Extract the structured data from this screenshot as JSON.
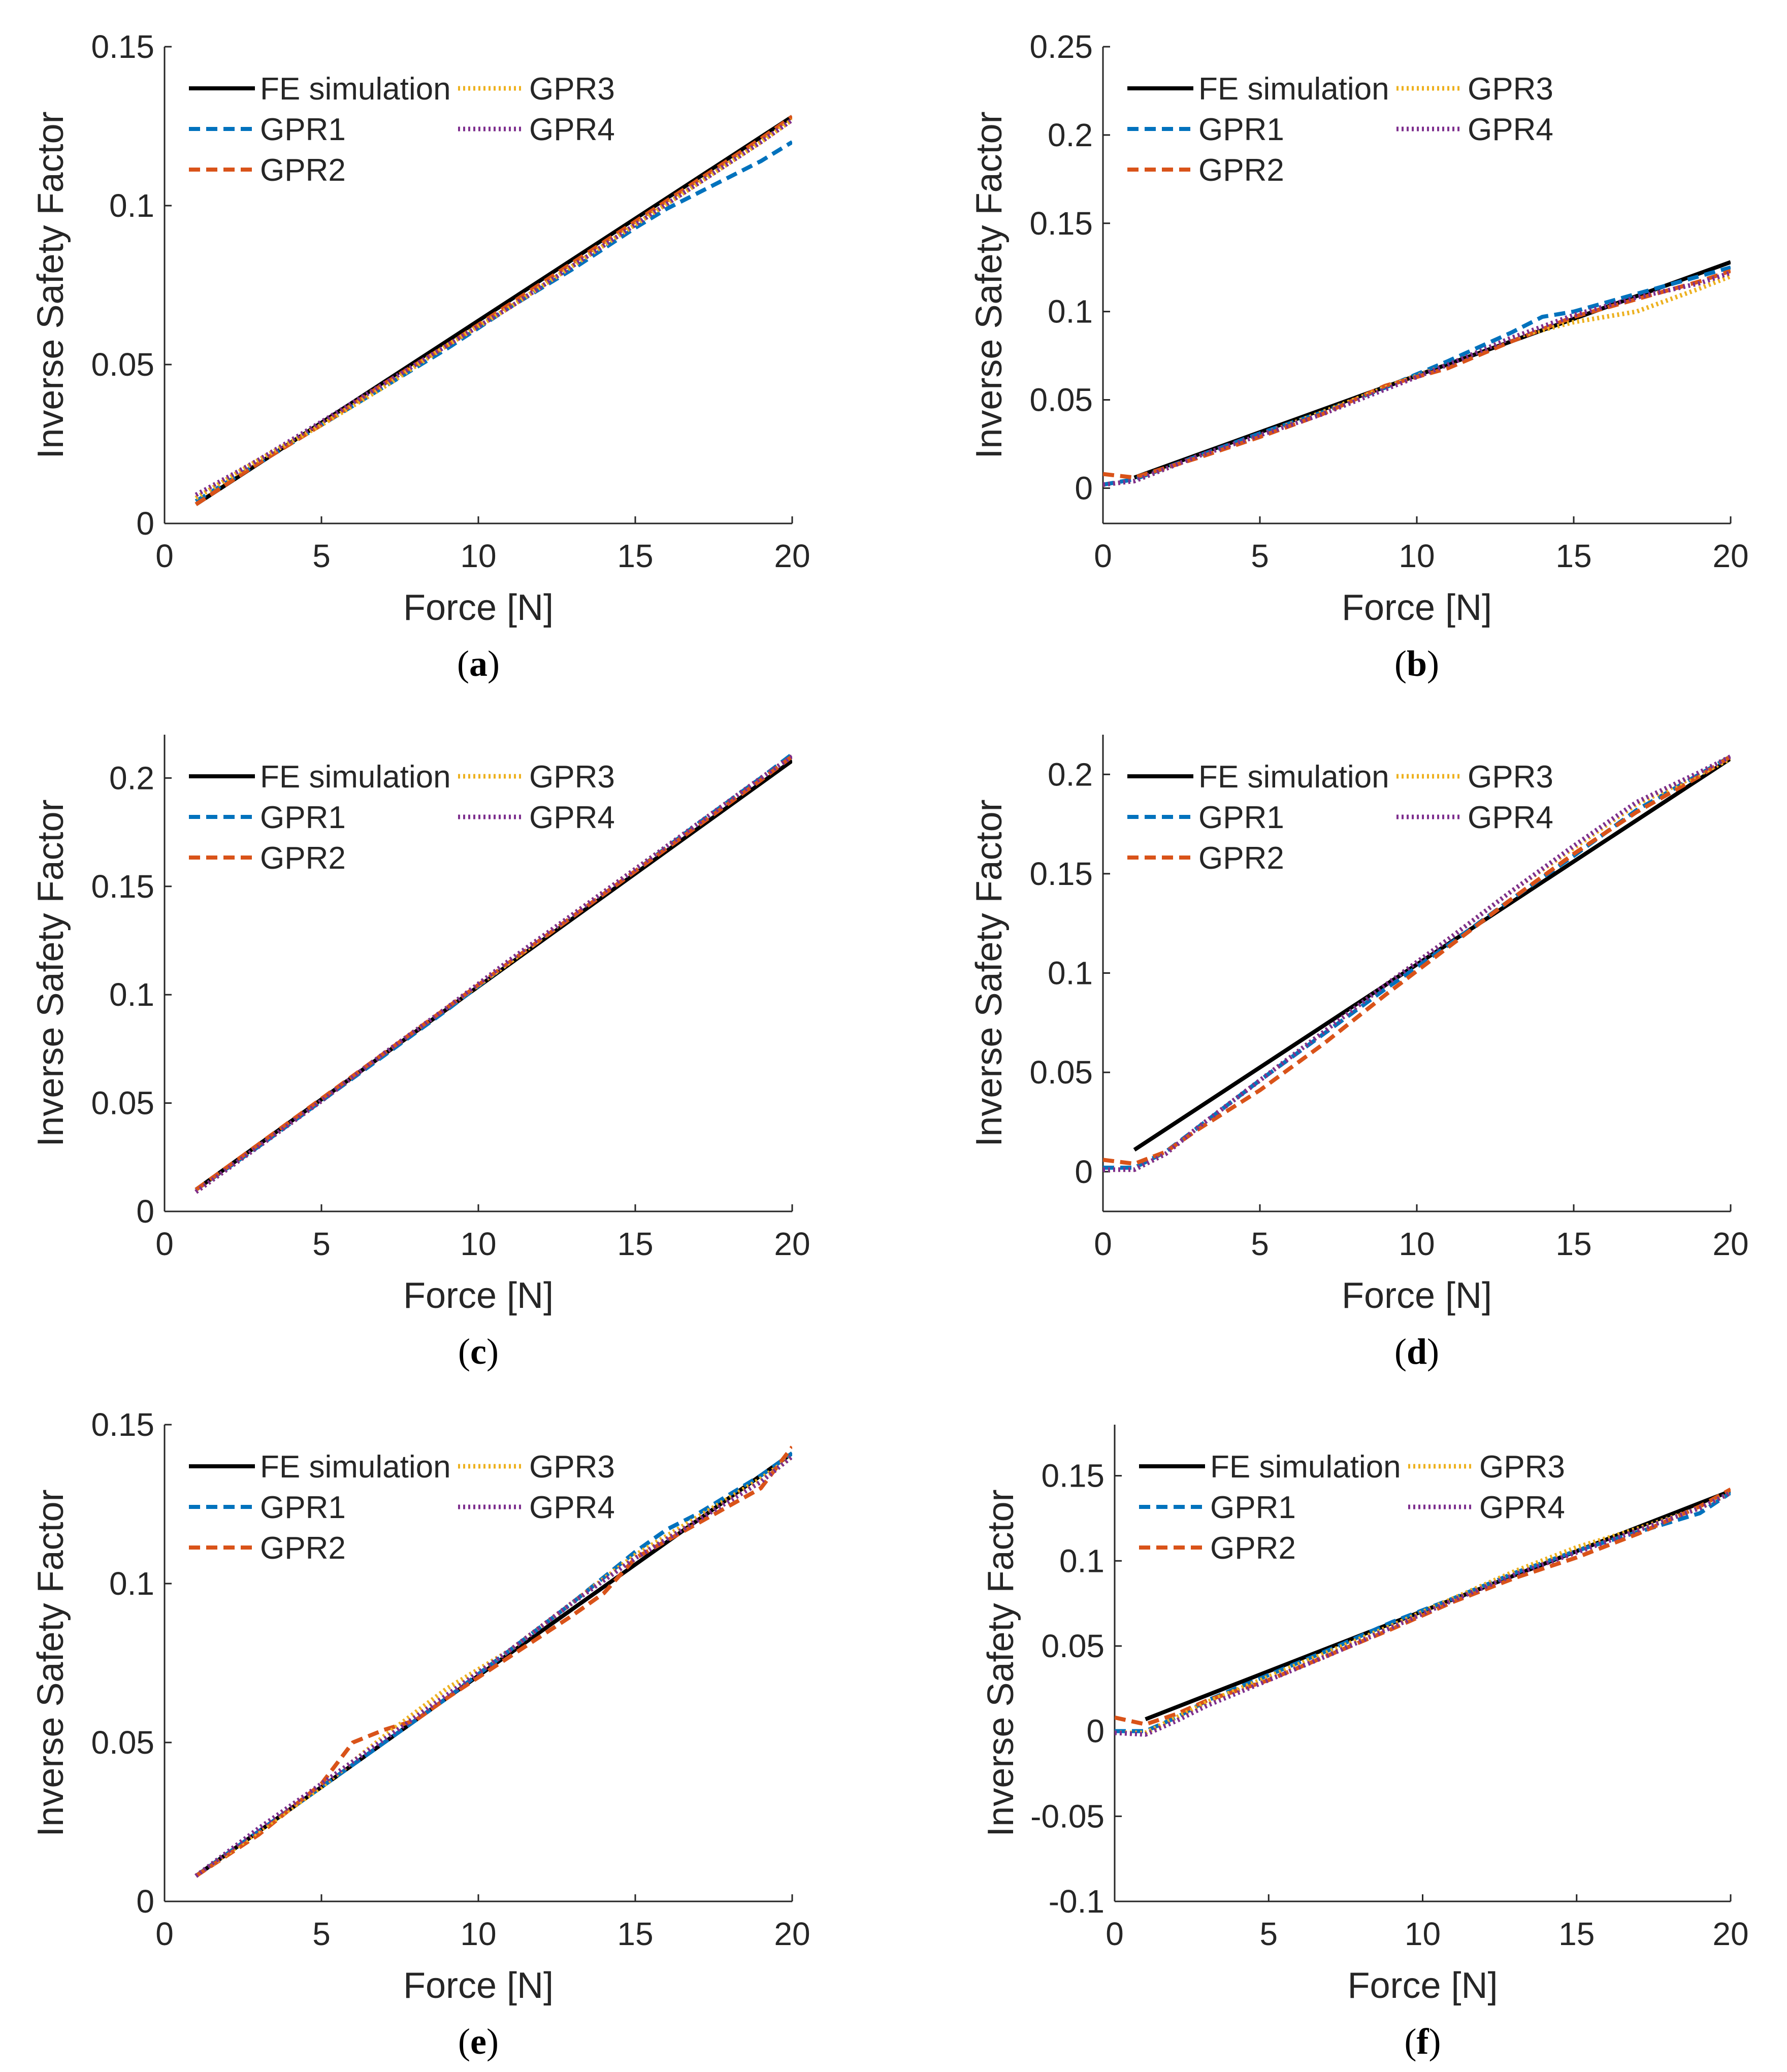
{
  "figure": {
    "colors": {
      "FE simulation": "#000000",
      "GPR1": "#0072BD",
      "GPR2": "#D95319",
      "GPR3": "#EDB120",
      "GPR4": "#7E2F8E"
    }
  },
  "chart_data": [
    {
      "id": "a",
      "type": "line",
      "caption": "a",
      "xlabel": "Force [N]",
      "ylabel": "Inverse Safety Factor",
      "xlim": [
        0,
        20
      ],
      "ylim": [
        0,
        0.15
      ],
      "xticks": [
        0,
        5,
        10,
        15,
        20
      ],
      "yticks": [
        0,
        0.05,
        0.1,
        0.15
      ],
      "xtick_labels": [
        "0",
        "5",
        "10",
        "15",
        "20"
      ],
      "ytick_labels": [
        "0",
        "0.05",
        "0.1",
        "0.15"
      ],
      "legend": "top-left",
      "series": [
        {
          "name": "FE simulation",
          "x": [
            1,
            20
          ],
          "y": [
            0.006,
            0.128
          ]
        },
        {
          "name": "GPR1",
          "x": [
            1,
            3,
            5,
            7,
            9,
            11,
            13,
            15,
            16,
            17,
            18,
            19,
            20
          ],
          "y": [
            0.007,
            0.019,
            0.031,
            0.043,
            0.055,
            0.068,
            0.08,
            0.093,
            0.099,
            0.104,
            0.109,
            0.114,
            0.12
          ]
        },
        {
          "name": "GPR2",
          "x": [
            1,
            3,
            5,
            7,
            9,
            11,
            13,
            15,
            17,
            19,
            20
          ],
          "y": [
            0.006,
            0.019,
            0.031,
            0.044,
            0.056,
            0.069,
            0.082,
            0.095,
            0.108,
            0.121,
            0.128
          ]
        },
        {
          "name": "GPR3",
          "x": [
            1,
            3,
            5,
            7,
            9,
            11,
            13,
            15,
            17,
            19,
            20
          ],
          "y": [
            0.008,
            0.02,
            0.031,
            0.043,
            0.056,
            0.068,
            0.081,
            0.094,
            0.107,
            0.12,
            0.127
          ]
        },
        {
          "name": "GPR4",
          "x": [
            1,
            3,
            5,
            7,
            9,
            11,
            13,
            15,
            17,
            19,
            20
          ],
          "y": [
            0.009,
            0.02,
            0.032,
            0.044,
            0.056,
            0.068,
            0.081,
            0.094,
            0.107,
            0.12,
            0.127
          ]
        }
      ]
    },
    {
      "id": "b",
      "type": "line",
      "caption": "b",
      "xlabel": "Force [N]",
      "ylabel": "Inverse Safety Factor",
      "xlim": [
        0,
        20
      ],
      "ylim": [
        -0.02,
        0.25
      ],
      "xticks": [
        0,
        5,
        10,
        15,
        20
      ],
      "yticks": [
        0,
        0.05,
        0.1,
        0.15,
        0.2,
        0.25
      ],
      "xtick_labels": [
        "0",
        "5",
        "10",
        "15",
        "20"
      ],
      "ytick_labels": [
        "0",
        "0.05",
        "0.1",
        "0.15",
        "0.2",
        "0.25"
      ],
      "legend": "top-left",
      "series": [
        {
          "name": "FE simulation",
          "x": [
            1,
            20
          ],
          "y": [
            0.006,
            0.128
          ]
        },
        {
          "name": "GPR1",
          "x": [
            0,
            1,
            3,
            5,
            7,
            9,
            11,
            13,
            14,
            15,
            17,
            19,
            20
          ],
          "y": [
            0.002,
            0.005,
            0.018,
            0.031,
            0.043,
            0.057,
            0.072,
            0.088,
            0.097,
            0.1,
            0.11,
            0.12,
            0.125
          ]
        },
        {
          "name": "GPR2",
          "x": [
            0,
            1,
            3,
            5,
            7,
            9,
            11,
            13,
            15,
            17,
            19,
            20
          ],
          "y": [
            0.008,
            0.006,
            0.017,
            0.029,
            0.042,
            0.058,
            0.068,
            0.083,
            0.097,
            0.107,
            0.117,
            0.123
          ]
        },
        {
          "name": "GPR3",
          "x": [
            0,
            1,
            3,
            5,
            7,
            9,
            11,
            13,
            15,
            17,
            19,
            20
          ],
          "y": [
            0.002,
            0.004,
            0.018,
            0.03,
            0.043,
            0.057,
            0.07,
            0.085,
            0.094,
            0.1,
            0.113,
            0.12
          ]
        },
        {
          "name": "GPR4",
          "x": [
            0,
            1,
            3,
            5,
            7,
            9,
            11,
            13,
            15,
            17,
            19,
            20
          ],
          "y": [
            0.002,
            0.004,
            0.018,
            0.03,
            0.042,
            0.056,
            0.07,
            0.085,
            0.098,
            0.108,
            0.116,
            0.122
          ]
        }
      ]
    },
    {
      "id": "c",
      "type": "line",
      "caption": "c",
      "xlabel": "Force [N]",
      "ylabel": "Inverse Safety Factor",
      "xlim": [
        0,
        20
      ],
      "ylim": [
        0,
        0.22
      ],
      "xticks": [
        0,
        5,
        10,
        15,
        20
      ],
      "yticks": [
        0,
        0.05,
        0.1,
        0.15,
        0.2
      ],
      "xtick_labels": [
        "0",
        "5",
        "10",
        "15",
        "20"
      ],
      "ytick_labels": [
        "0",
        "0.05",
        "0.1",
        "0.15",
        "0.2"
      ],
      "legend": "top-left",
      "series": [
        {
          "name": "FE simulation",
          "x": [
            1,
            20
          ],
          "y": [
            0.01,
            0.208
          ]
        },
        {
          "name": "GPR1",
          "x": [
            1,
            3,
            5,
            7,
            9,
            11,
            13,
            15,
            17,
            19,
            20
          ],
          "y": [
            0.01,
            0.03,
            0.051,
            0.072,
            0.093,
            0.115,
            0.136,
            0.157,
            0.179,
            0.2,
            0.211
          ]
        },
        {
          "name": "GPR2",
          "x": [
            1,
            3,
            5,
            7,
            9,
            11,
            13,
            15,
            17,
            19,
            20
          ],
          "y": [
            0.01,
            0.031,
            0.052,
            0.073,
            0.094,
            0.115,
            0.136,
            0.157,
            0.178,
            0.199,
            0.21
          ]
        },
        {
          "name": "GPR3",
          "x": [
            1,
            3,
            5,
            7,
            9,
            11,
            13,
            15,
            17,
            19,
            20
          ],
          "y": [
            0.009,
            0.03,
            0.051,
            0.073,
            0.094,
            0.115,
            0.137,
            0.158,
            0.179,
            0.2,
            0.21
          ]
        },
        {
          "name": "GPR4",
          "x": [
            1,
            3,
            5,
            7,
            9,
            11,
            13,
            15,
            17,
            19,
            20
          ],
          "y": [
            0.009,
            0.03,
            0.051,
            0.073,
            0.094,
            0.116,
            0.137,
            0.158,
            0.179,
            0.2,
            0.21
          ]
        }
      ]
    },
    {
      "id": "d",
      "type": "line",
      "caption": "d",
      "xlabel": "Force [N]",
      "ylabel": "Inverse Safety Factor",
      "xlim": [
        0,
        20
      ],
      "ylim": [
        -0.02,
        0.22
      ],
      "xticks": [
        0,
        5,
        10,
        15,
        20
      ],
      "yticks": [
        0,
        0.05,
        0.1,
        0.15,
        0.2
      ],
      "xtick_labels": [
        "0",
        "5",
        "10",
        "15",
        "20"
      ],
      "ytick_labels": [
        "0",
        "0.05",
        "0.1",
        "0.15",
        "0.2"
      ],
      "legend": "top-left",
      "series": [
        {
          "name": "FE simulation",
          "x": [
            1,
            20
          ],
          "y": [
            0.011,
            0.208
          ]
        },
        {
          "name": "GPR1",
          "x": [
            0,
            1,
            2,
            3,
            5,
            7,
            9,
            11,
            13,
            15,
            17,
            19,
            20
          ],
          "y": [
            0.002,
            0.002,
            0.01,
            0.022,
            0.046,
            0.069,
            0.092,
            0.114,
            0.137,
            0.159,
            0.182,
            0.2,
            0.209
          ]
        },
        {
          "name": "GPR2",
          "x": [
            0,
            1,
            2,
            3,
            5,
            7,
            9,
            11,
            13,
            15,
            17,
            19,
            20
          ],
          "y": [
            0.006,
            0.004,
            0.01,
            0.021,
            0.041,
            0.064,
            0.089,
            0.113,
            0.137,
            0.16,
            0.181,
            0.199,
            0.209
          ]
        },
        {
          "name": "GPR3",
          "x": [
            0,
            1,
            2,
            3,
            5,
            7,
            9,
            11,
            13,
            15,
            17,
            19,
            20
          ],
          "y": [
            0.001,
            0.001,
            0.009,
            0.022,
            0.046,
            0.07,
            0.094,
            0.117,
            0.141,
            0.163,
            0.185,
            0.2,
            0.208
          ]
        },
        {
          "name": "GPR4",
          "x": [
            0,
            1,
            2,
            3,
            5,
            7,
            9,
            11,
            13,
            15,
            17,
            19,
            20
          ],
          "y": [
            0.001,
            0.001,
            0.009,
            0.022,
            0.046,
            0.07,
            0.094,
            0.117,
            0.141,
            0.164,
            0.186,
            0.201,
            0.209
          ]
        }
      ]
    },
    {
      "id": "e",
      "type": "line",
      "caption": "e",
      "xlabel": "Force [N]",
      "ylabel": "Inverse Safety Factor",
      "xlim": [
        0,
        20
      ],
      "ylim": [
        0,
        0.15
      ],
      "xticks": [
        0,
        5,
        10,
        15,
        20
      ],
      "yticks": [
        0,
        0.05,
        0.1,
        0.15
      ],
      "xtick_labels": [
        "0",
        "5",
        "10",
        "15",
        "20"
      ],
      "ytick_labels": [
        "0",
        "0.05",
        "0.1",
        "0.15"
      ],
      "legend": "top-left",
      "series": [
        {
          "name": "FE simulation",
          "x": [
            1,
            20
          ],
          "y": [
            0.008,
            0.141
          ]
        },
        {
          "name": "GPR1",
          "x": [
            1,
            3,
            5,
            7,
            9,
            11,
            13,
            15,
            16,
            17,
            18,
            19,
            20
          ],
          "y": [
            0.008,
            0.022,
            0.036,
            0.05,
            0.064,
            0.079,
            0.094,
            0.11,
            0.117,
            0.122,
            0.128,
            0.134,
            0.141
          ]
        },
        {
          "name": "GPR2",
          "x": [
            1,
            3,
            5,
            6,
            7,
            8,
            9,
            11,
            13,
            14,
            15,
            17,
            19,
            20
          ],
          "y": [
            0.008,
            0.021,
            0.037,
            0.05,
            0.054,
            0.057,
            0.064,
            0.077,
            0.09,
            0.097,
            0.108,
            0.119,
            0.13,
            0.143
          ]
        },
        {
          "name": "GPR3",
          "x": [
            1,
            3,
            5,
            7,
            9,
            10,
            11,
            13,
            15,
            17,
            19,
            20
          ],
          "y": [
            0.008,
            0.022,
            0.036,
            0.052,
            0.067,
            0.073,
            0.079,
            0.094,
            0.109,
            0.121,
            0.133,
            0.14
          ]
        },
        {
          "name": "GPR4",
          "x": [
            1,
            3,
            5,
            7,
            9,
            11,
            13,
            15,
            17,
            19,
            20
          ],
          "y": [
            0.008,
            0.023,
            0.037,
            0.051,
            0.065,
            0.079,
            0.094,
            0.108,
            0.12,
            0.132,
            0.14
          ]
        }
      ]
    },
    {
      "id": "f",
      "type": "line",
      "caption": "f",
      "xlabel": "Force [N]",
      "ylabel": "Inverse Safety Factor",
      "xlim": [
        0,
        20
      ],
      "ylim": [
        -0.1,
        0.18
      ],
      "xticks": [
        0,
        5,
        10,
        15,
        20
      ],
      "yticks": [
        -0.1,
        -0.05,
        0,
        0.05,
        0.1,
        0.15
      ],
      "xtick_labels": [
        "0",
        "5",
        "10",
        "15",
        "20"
      ],
      "ytick_labels": [
        "-0.1",
        "-0.05",
        "0",
        "0.05",
        "0.1",
        "0.15"
      ],
      "legend": "top-left",
      "series": [
        {
          "name": "FE simulation",
          "x": [
            1,
            20
          ],
          "y": [
            0.007,
            0.141
          ]
        },
        {
          "name": "GPR1",
          "x": [
            0,
            1,
            2,
            3,
            5,
            7,
            9,
            11,
            13,
            15,
            17,
            19,
            20
          ],
          "y": [
            0.0,
            0.0,
            0.008,
            0.018,
            0.033,
            0.048,
            0.064,
            0.078,
            0.093,
            0.106,
            0.117,
            0.128,
            0.14
          ]
        },
        {
          "name": "GPR2",
          "x": [
            0,
            1,
            2,
            3,
            5,
            7,
            9,
            11,
            13,
            15,
            17,
            19,
            20
          ],
          "y": [
            0.008,
            0.004,
            0.01,
            0.018,
            0.03,
            0.045,
            0.06,
            0.076,
            0.09,
            0.102,
            0.116,
            0.132,
            0.142
          ]
        },
        {
          "name": "GPR3",
          "x": [
            0,
            1,
            2,
            3,
            5,
            7,
            9,
            11,
            13,
            15,
            17,
            19,
            20
          ],
          "y": [
            -0.001,
            -0.001,
            0.008,
            0.017,
            0.032,
            0.047,
            0.062,
            0.078,
            0.094,
            0.108,
            0.119,
            0.131,
            0.14
          ]
        },
        {
          "name": "GPR4",
          "x": [
            0,
            1,
            2,
            3,
            5,
            7,
            9,
            11,
            13,
            15,
            17,
            19,
            20
          ],
          "y": [
            -0.001,
            -0.002,
            0.006,
            0.015,
            0.03,
            0.045,
            0.061,
            0.077,
            0.092,
            0.105,
            0.118,
            0.131,
            0.14
          ]
        }
      ]
    }
  ]
}
